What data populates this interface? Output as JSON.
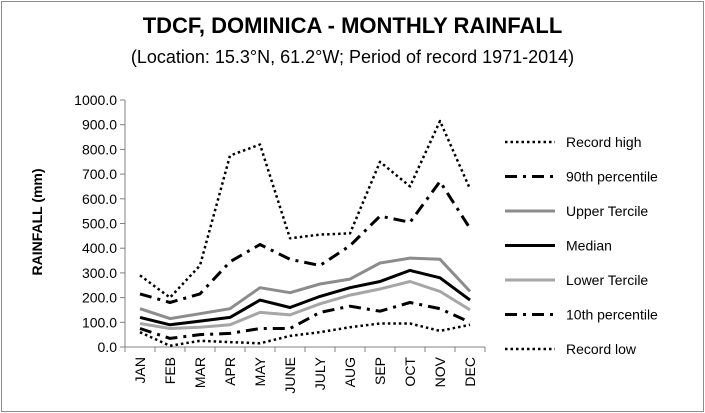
{
  "chart_data": {
    "type": "line",
    "title": "TDCF, DOMINICA - MONTHLY RAINFALL",
    "subtitle": "(Location: 15.3°N, 61.2°W; Period of record 1971-2014)",
    "xlabel": "",
    "ylabel": "RAINFALL (mm)",
    "ylim": [
      0,
      1000
    ],
    "yticks": [
      "0.0",
      "100.0",
      "200.0",
      "300.0",
      "400.0",
      "500.0",
      "600.0",
      "700.0",
      "800.0",
      "900.0",
      "1000.0"
    ],
    "categories": [
      "JAN",
      "FEB",
      "MAR",
      "APR",
      "MAY",
      "JUNE",
      "JULY",
      "AUG",
      "SEP",
      "OCT",
      "NOV",
      "DEC"
    ],
    "grid": false,
    "legend_position": "right",
    "series": [
      {
        "name": "Record high",
        "style": "dotted",
        "color": "#000000",
        "values": [
          290,
          200,
          330,
          775,
          820,
          440,
          455,
          460,
          750,
          650,
          915,
          640
        ]
      },
      {
        "name": "90th percentile",
        "style": "dashdot",
        "color": "#000000",
        "values": [
          215,
          180,
          215,
          345,
          415,
          355,
          330,
          410,
          530,
          505,
          670,
          480
        ]
      },
      {
        "name": "Upper Tercile",
        "style": "solid",
        "color": "#8c8c8c",
        "values": [
          155,
          115,
          135,
          155,
          240,
          220,
          255,
          275,
          340,
          360,
          355,
          225
        ]
      },
      {
        "name": "Median",
        "style": "solid",
        "color": "#000000",
        "values": [
          120,
          90,
          105,
          120,
          190,
          160,
          205,
          240,
          265,
          310,
          280,
          190
        ]
      },
      {
        "name": "Lower Tercile",
        "style": "solid",
        "color": "#a6a6a6",
        "values": [
          95,
          75,
          80,
          90,
          140,
          130,
          175,
          210,
          235,
          265,
          225,
          150
        ]
      },
      {
        "name": "10th percentile",
        "style": "dashdot",
        "color": "#000000",
        "values": [
          75,
          35,
          50,
          55,
          75,
          75,
          140,
          165,
          145,
          180,
          155,
          100
        ]
      },
      {
        "name": "Record low",
        "style": "dotted",
        "color": "#000000",
        "values": [
          60,
          5,
          25,
          20,
          15,
          45,
          60,
          80,
          95,
          95,
          65,
          90
        ]
      }
    ]
  }
}
